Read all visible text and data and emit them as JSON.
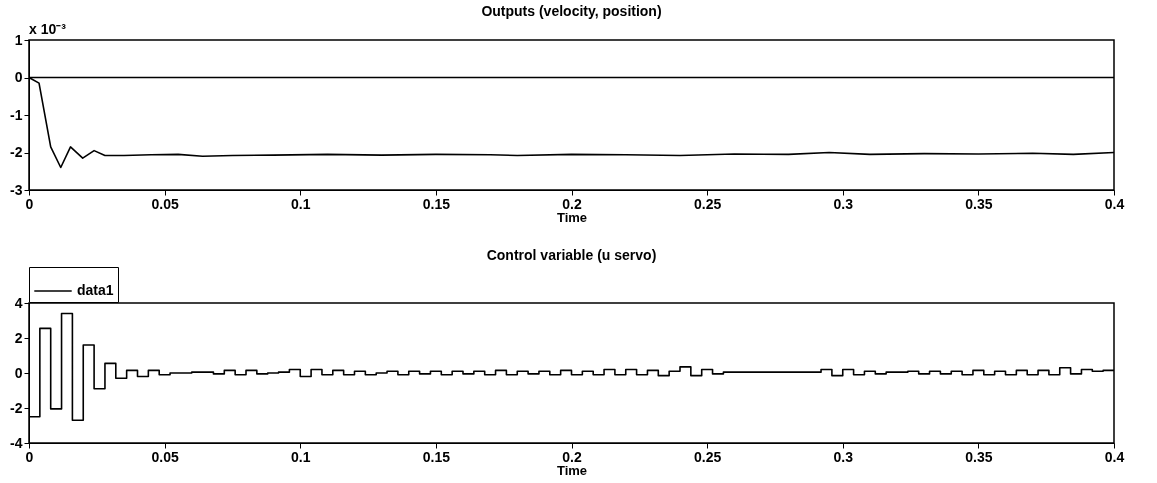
{
  "chart_data": [
    {
      "type": "line",
      "title": "Outputs  (velocity, position)",
      "xlabel": "Time",
      "annotations": [
        "x 10⁻³"
      ],
      "xlim": [
        0,
        0.4
      ],
      "xticks": [
        0,
        0.05,
        0.1,
        0.15,
        0.2,
        0.25,
        0.3,
        0.35,
        0.4
      ],
      "ylim": [
        -3,
        1
      ],
      "yticks": [
        -3,
        -2,
        -1,
        0,
        1
      ],
      "grid": false,
      "marker": "none",
      "line_style": "solid",
      "series": [
        {
          "color": "#000000",
          "x": [
            0,
            0.4
          ],
          "values": [
            0,
            0
          ]
        },
        {
          "color": "#000000",
          "x": [
            0,
            0.0037,
            0.008,
            0.0117,
            0.0153,
            0.0198,
            0.024,
            0.028,
            0.035,
            0.045,
            0.055,
            0.064,
            0.075,
            0.09,
            0.11,
            0.13,
            0.15,
            0.17,
            0.18,
            0.2,
            0.22,
            0.24,
            0.26,
            0.28,
            0.295,
            0.31,
            0.33,
            0.35,
            0.37,
            0.385,
            0.4
          ],
          "values": [
            0,
            -0.15,
            -1.85,
            -2.4,
            -1.85,
            -2.15,
            -1.95,
            -2.08,
            -2.08,
            -2.06,
            -2.05,
            -2.1,
            -2.08,
            -2.07,
            -2.05,
            -2.07,
            -2.05,
            -2.06,
            -2.08,
            -2.05,
            -2.06,
            -2.08,
            -2.04,
            -2.05,
            -2.0,
            -2.05,
            -2.03,
            -2.04,
            -2.02,
            -2.05,
            -2.0
          ]
        }
      ]
    },
    {
      "type": "step",
      "title": "Control variable  (u servo)",
      "xlabel": "Time",
      "xlim": [
        0,
        0.4
      ],
      "xticks": [
        0,
        0.05,
        0.1,
        0.15,
        0.2,
        0.25,
        0.3,
        0.35,
        0.4
      ],
      "ylim": [
        -4,
        4
      ],
      "yticks": [
        -4,
        -2,
        0,
        2,
        4
      ],
      "grid": false,
      "legend": "top left",
      "marker": "none",
      "line_style": "solid",
      "series": [
        {
          "name": "data1",
          "color": "#000000",
          "x": [
            0,
            0.004,
            0.008,
            0.012,
            0.016,
            0.02,
            0.024,
            0.028,
            0.032,
            0.036,
            0.04,
            0.044,
            0.048,
            0.052,
            0.056,
            0.06,
            0.064,
            0.068,
            0.072,
            0.076,
            0.08,
            0.084,
            0.088,
            0.092,
            0.096,
            0.1,
            0.104,
            0.108,
            0.112,
            0.116,
            0.12,
            0.124,
            0.128,
            0.132,
            0.136,
            0.14,
            0.144,
            0.148,
            0.152,
            0.156,
            0.16,
            0.164,
            0.168,
            0.172,
            0.176,
            0.18,
            0.184,
            0.188,
            0.192,
            0.196,
            0.2,
            0.204,
            0.208,
            0.212,
            0.216,
            0.22,
            0.224,
            0.228,
            0.232,
            0.236,
            0.24,
            0.244,
            0.248,
            0.252,
            0.256,
            0.26,
            0.264,
            0.268,
            0.272,
            0.276,
            0.28,
            0.284,
            0.288,
            0.292,
            0.296,
            0.3,
            0.304,
            0.308,
            0.312,
            0.316,
            0.32,
            0.324,
            0.328,
            0.332,
            0.336,
            0.34,
            0.344,
            0.348,
            0.352,
            0.356,
            0.36,
            0.364,
            0.368,
            0.372,
            0.376,
            0.38,
            0.384,
            0.388,
            0.392,
            0.396,
            0.4
          ],
          "values": [
            -2.5,
            2.55,
            -2.05,
            3.4,
            -2.7,
            1.6,
            -0.9,
            0.55,
            -0.3,
            0.15,
            -0.2,
            0.15,
            -0.1,
            0,
            0,
            0.05,
            0.05,
            -0.05,
            0.15,
            -0.1,
            0.15,
            -0.05,
            0,
            0.05,
            0.2,
            -0.2,
            0.2,
            -0.1,
            0.15,
            -0.1,
            0.1,
            -0.1,
            0,
            0.1,
            -0.1,
            0.1,
            -0.05,
            0.1,
            -0.1,
            0.1,
            -0.05,
            0.1,
            -0.1,
            0.15,
            -0.1,
            0.1,
            -0.05,
            0.1,
            -0.1,
            0.15,
            -0.1,
            0.1,
            -0.1,
            0.2,
            -0.1,
            0.2,
            -0.1,
            0.15,
            -0.15,
            0.1,
            0.35,
            -0.15,
            0.2,
            -0.05,
            0.05,
            0.05,
            0.05,
            0.05,
            0.05,
            0.05,
            0.05,
            0.05,
            0.05,
            0.2,
            -0.15,
            0.2,
            -0.1,
            0.1,
            -0.05,
            0.05,
            0.05,
            0.1,
            -0.05,
            0.1,
            -0.05,
            0.1,
            -0.1,
            0.15,
            -0.1,
            0.1,
            -0.1,
            0.15,
            -0.1,
            0.15,
            -0.1,
            0.3,
            -0.05,
            0.2,
            0.1,
            0.15,
            0.15
          ]
        }
      ]
    }
  ]
}
